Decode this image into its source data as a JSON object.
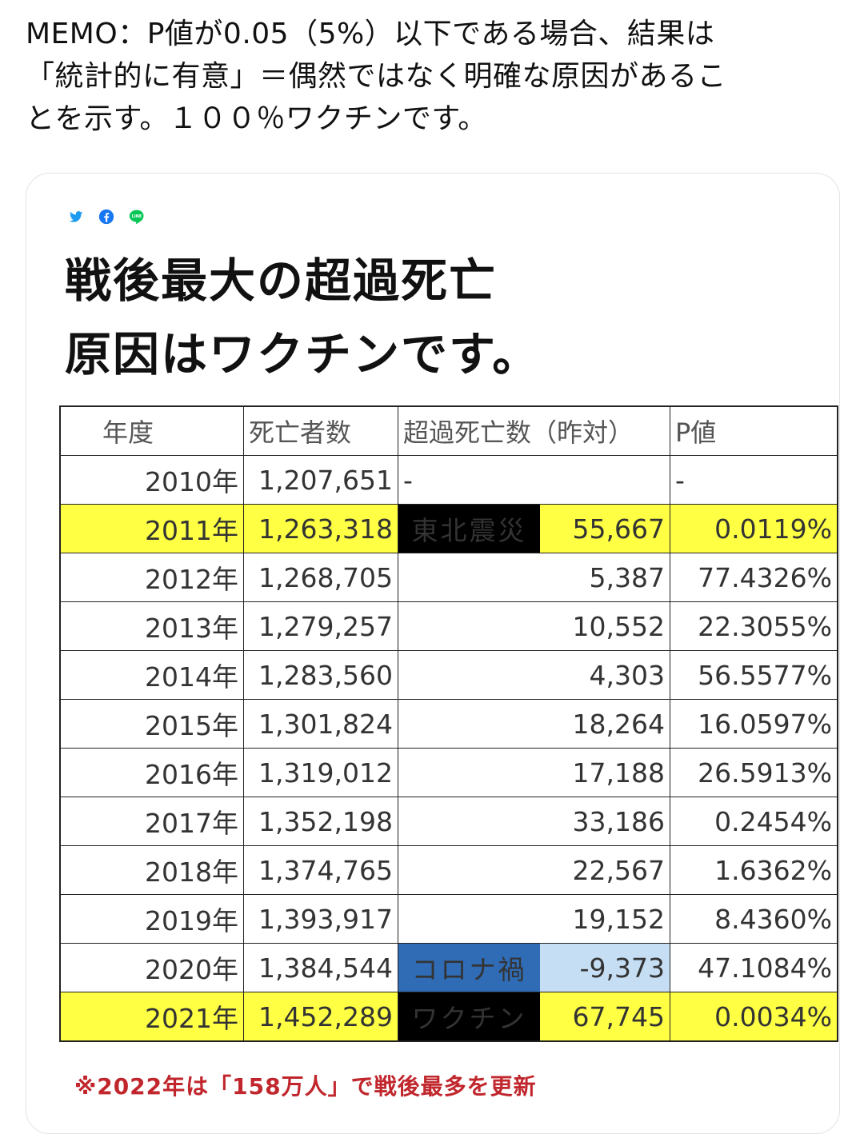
{
  "post": {
    "memo_lines": [
      "MEMO：P値が0.05（5%）以下である場合、結果は",
      "「統計的に有意」＝偶然ではなく明確な原因があるこ",
      "とを示す。１００％ワクチンです。"
    ]
  },
  "card": {
    "share_icons": [
      "twitter-icon",
      "facebook-icon",
      "line-icon"
    ],
    "title_lines": [
      "戦後最大の超過死亡",
      "原因はワクチンです。"
    ],
    "table": {
      "headers": [
        "年度",
        "死亡者数",
        "超過死亡数（昨対）",
        "P値"
      ],
      "rows": [
        {
          "year": "2010年",
          "deaths": "1,207,651",
          "event": "",
          "excess": "-",
          "p": "-"
        },
        {
          "year": "2011年",
          "deaths": "1,263,318",
          "event": "東北震災",
          "excess": "55,667",
          "p": "0.0119%"
        },
        {
          "year": "2012年",
          "deaths": "1,268,705",
          "event": "",
          "excess": "5,387",
          "p": "77.4326%"
        },
        {
          "year": "2013年",
          "deaths": "1,279,257",
          "event": "",
          "excess": "10,552",
          "p": "22.3055%"
        },
        {
          "year": "2014年",
          "deaths": "1,283,560",
          "event": "",
          "excess": "4,303",
          "p": "56.5577%"
        },
        {
          "year": "2015年",
          "deaths": "1,301,824",
          "event": "",
          "excess": "18,264",
          "p": "16.0597%"
        },
        {
          "year": "2016年",
          "deaths": "1,319,012",
          "event": "",
          "excess": "17,188",
          "p": "26.5913%"
        },
        {
          "year": "2017年",
          "deaths": "1,352,198",
          "event": "",
          "excess": "33,186",
          "p": "0.2454%"
        },
        {
          "year": "2018年",
          "deaths": "1,374,765",
          "event": "",
          "excess": "22,567",
          "p": "1.6362%"
        },
        {
          "year": "2019年",
          "deaths": "1,393,917",
          "event": "",
          "excess": "19,152",
          "p": "8.4360%"
        },
        {
          "year": "2020年",
          "deaths": "1,384,544",
          "event": "コロナ禍",
          "excess": "-9,373",
          "p": "47.1084%"
        },
        {
          "year": "2021年",
          "deaths": "1,452,289",
          "event": "ワクチン",
          "excess": "67,745",
          "p": "0.0034%"
        }
      ]
    },
    "footnote": "※2022年は「158万人」で戦後最多を更新"
  },
  "colors": {
    "highlight_yellow": "#ffff44",
    "event_black": "#000000",
    "event_blue": "#2f6cb5",
    "negative_cell_bg": "#c6def4",
    "negative_text": "#d0587a",
    "footnote_red": "#c0262c"
  }
}
